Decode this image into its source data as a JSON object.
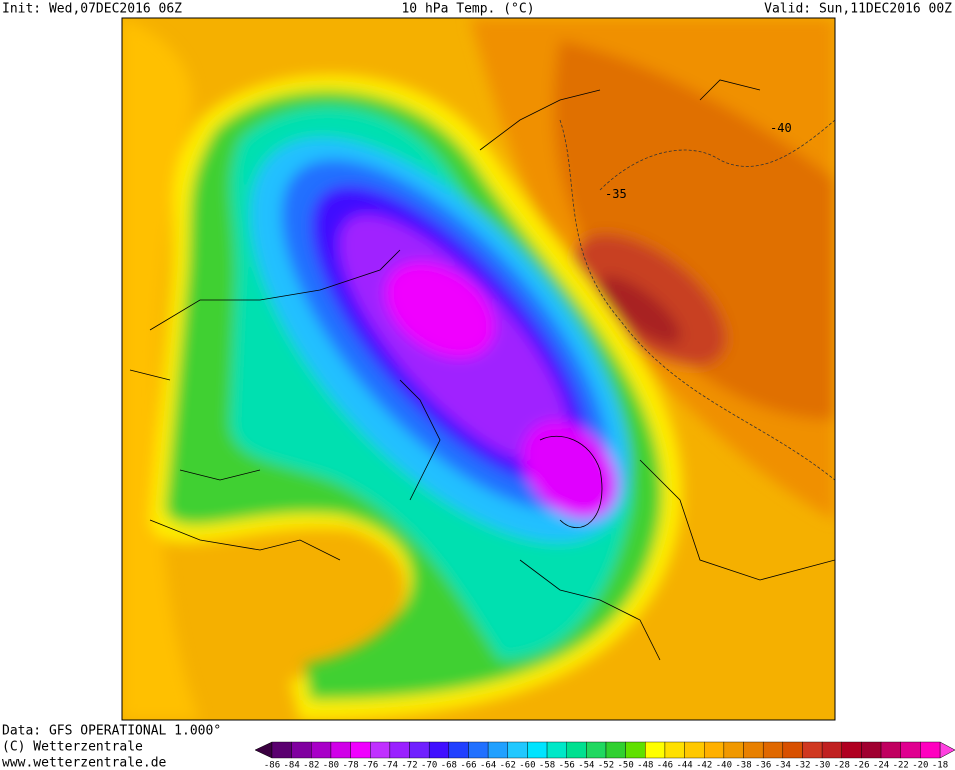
{
  "header": {
    "init": "Init: Wed,07DEC2016 06Z",
    "title": "10 hPa Temp. (°C)",
    "valid": "Valid: Sun,11DEC2016 00Z"
  },
  "map": {
    "contour_labels": [
      -40,
      -35
    ]
  },
  "footer": {
    "data": "Data: GFS OPERATIONAL 1.000°",
    "copyright": "(C) Wetterzentrale",
    "url": "www.wetterzentrale.de"
  },
  "colorbar": {
    "ticks": [
      -86,
      -84,
      -82,
      -80,
      -78,
      -76,
      -74,
      -72,
      -70,
      -68,
      -66,
      -64,
      -62,
      -60,
      -58,
      -56,
      -54,
      -52,
      -50,
      -48,
      -46,
      -44,
      -42,
      -40,
      -38,
      -36,
      -34,
      -32,
      -30,
      -28,
      -26,
      -24,
      -22,
      -20,
      -18
    ],
    "colors": [
      "#5a0070",
      "#8000a0",
      "#a800c8",
      "#d000e8",
      "#f000ff",
      "#c030ff",
      "#9a20ff",
      "#7020ff",
      "#4010ff",
      "#2040ff",
      "#2070ff",
      "#20a0ff",
      "#20c8ff",
      "#00e4ff",
      "#00e8c8",
      "#00e090",
      "#20d860",
      "#30d030",
      "#60e000",
      "#ffff00",
      "#ffe000",
      "#ffc800",
      "#ffb000",
      "#f09800",
      "#e88000",
      "#e06800",
      "#d85000",
      "#d03820",
      "#c02020",
      "#b00020",
      "#a00030",
      "#c00060",
      "#e00090",
      "#ff00c0"
    ]
  }
}
